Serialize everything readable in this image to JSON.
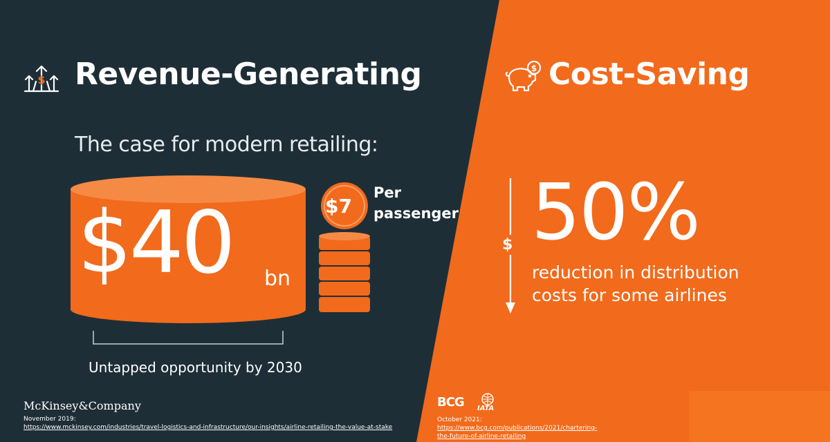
{
  "left": {
    "title": "Revenue-Generating",
    "title_icon": "growth-dollar-icon",
    "subtitle": "The case for modern retailing:",
    "big_amount": "$40",
    "big_unit": "bn",
    "coin_value": "$7",
    "coin_caption_line1": "Per",
    "coin_caption_line2": "passenger",
    "caption": "Untapped opportunity by 2030",
    "source_logo": "McKinsey&Company",
    "source_date": "November 2019:",
    "source_url": "https://www.mckinsey.com/industries/travel-logistics-and-infrastructure/our-insights/airline-retailing-the-value-at-stake"
  },
  "right": {
    "title": "Cost-Saving",
    "title_icon": "piggy-bank-icon",
    "arrow_symbol": "$",
    "big_percent": "50%",
    "desc_line1": "reduction in distribution",
    "desc_line2": "costs for some airlines",
    "logo_bcg": "BCG",
    "logo_iata": "IATA",
    "source_date": "October 2021:",
    "source_url_line1": "https://www.bcg.com/publications/2021/chartering-",
    "source_url_line2": "the-future-of-airline-retailing"
  },
  "colors": {
    "dark_bg": "#1e2e37",
    "orange": "#f26a1b",
    "cylinder_top": "#f58a45",
    "white": "#ffffff"
  }
}
